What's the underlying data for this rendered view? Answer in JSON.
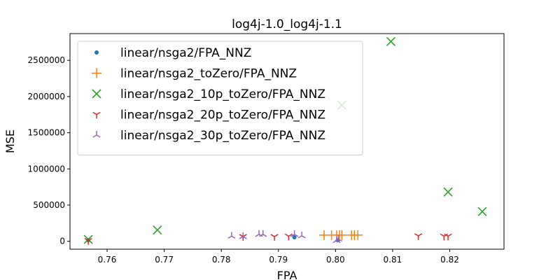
{
  "chart_data": {
    "type": "scatter",
    "title": "log4j-1.0_log4j-1.1",
    "xlabel": "FPA",
    "ylabel": "MSE",
    "xlim": [
      0.7535,
      0.8295
    ],
    "ylim": [
      -110000,
      2870000
    ],
    "xticks": [
      0.76,
      0.77,
      0.78,
      0.79,
      0.8,
      0.81,
      0.82
    ],
    "xtick_labels": [
      "0.76",
      "0.77",
      "0.78",
      "0.79",
      "0.80",
      "0.81",
      "0.82"
    ],
    "yticks": [
      0,
      500000,
      1000000,
      1500000,
      2000000,
      2500000
    ],
    "ytick_labels": [
      "0",
      "500000",
      "1000000",
      "1500000",
      "2000000",
      "2500000"
    ],
    "grid": false,
    "legend_position": "top-left",
    "series": [
      {
        "name": "linear/nsga2/FPA_NNZ",
        "marker": "point",
        "color": "#1f77b4",
        "points": [
          [
            0.7567,
            15000
          ],
          [
            0.7928,
            55000
          ],
          [
            0.8004,
            15000
          ]
        ]
      },
      {
        "name": "linear/nsga2_toZero/FPA_NNZ",
        "marker": "plus",
        "color": "#ff7f0e",
        "points": [
          [
            0.798,
            85000
          ],
          [
            0.7993,
            85000
          ],
          [
            0.8002,
            85000
          ],
          [
            0.8007,
            85000
          ],
          [
            0.8011,
            85000
          ],
          [
            0.8028,
            85000
          ],
          [
            0.8033,
            85000
          ],
          [
            0.8039,
            85000
          ]
        ]
      },
      {
        "name": "linear/nsga2_10p_toZero/FPA_NNZ",
        "marker": "x",
        "color": "#2ca02c",
        "points": [
          [
            0.7567,
            25000
          ],
          [
            0.7688,
            155000
          ],
          [
            0.8011,
            1880000
          ],
          [
            0.8097,
            2760000
          ],
          [
            0.8197,
            680000
          ],
          [
            0.8257,
            410000
          ]
        ]
      },
      {
        "name": "linear/nsga2_20p_toZero/FPA_NNZ",
        "marker": "tri_down",
        "color": "#d62728",
        "points": [
          [
            0.7567,
            10000
          ],
          [
            0.7838,
            65000
          ],
          [
            0.7893,
            65000
          ],
          [
            0.7918,
            70000
          ],
          [
            0.8145,
            75000
          ],
          [
            0.819,
            70000
          ],
          [
            0.8197,
            70000
          ]
        ]
      },
      {
        "name": "linear/nsga2_30p_toZero/FPA_NNZ",
        "marker": "tri_up",
        "color": "#9467bd",
        "points": [
          [
            0.7818,
            70000
          ],
          [
            0.7838,
            65000
          ],
          [
            0.7866,
            95000
          ],
          [
            0.7873,
            95000
          ],
          [
            0.7928,
            95000
          ],
          [
            0.7941,
            75000
          ],
          [
            0.8002,
            10000
          ],
          [
            0.8005,
            30000
          ]
        ]
      }
    ]
  }
}
